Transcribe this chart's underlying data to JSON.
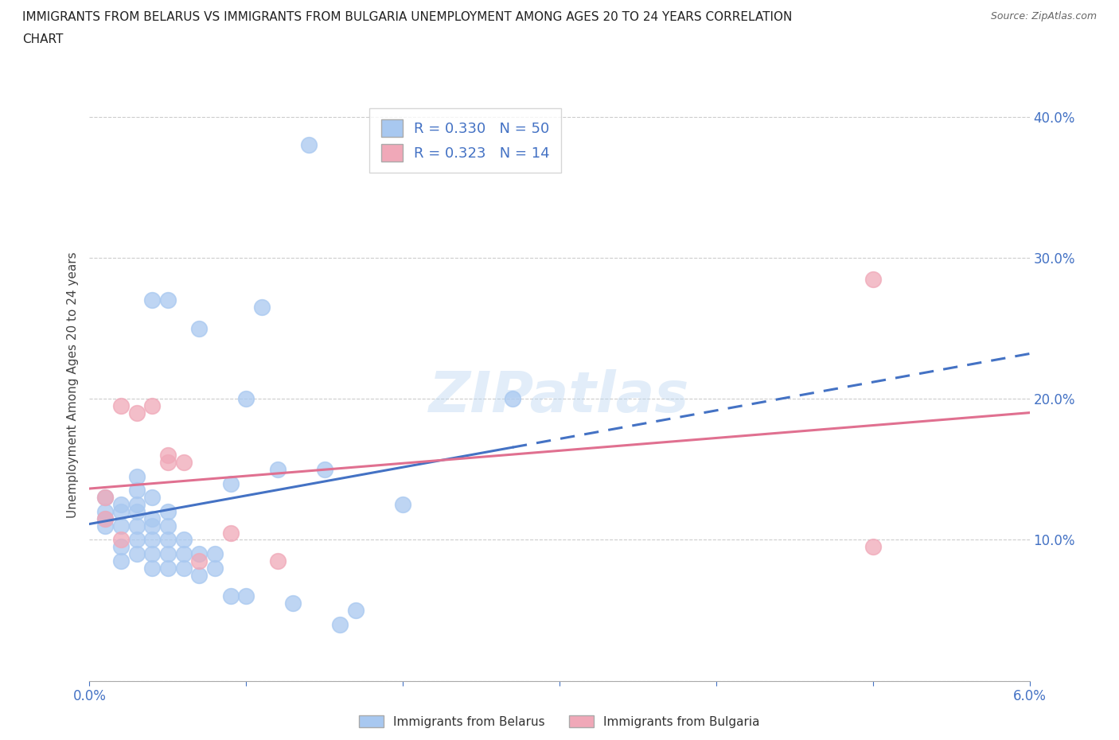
{
  "title_line1": "IMMIGRANTS FROM BELARUS VS IMMIGRANTS FROM BULGARIA UNEMPLOYMENT AMONG AGES 20 TO 24 YEARS CORRELATION",
  "title_line2": "CHART",
  "source": "Source: ZipAtlas.com",
  "ylabel": "Unemployment Among Ages 20 to 24 years",
  "xlim": [
    0.0,
    0.06
  ],
  "ylim": [
    0.0,
    0.42
  ],
  "belarus_color": "#a8c8f0",
  "bulgaria_color": "#f0a8b8",
  "belarus_line_color": "#4472c4",
  "bulgaria_line_color": "#e07090",
  "belarus_R": 0.33,
  "belarus_N": 50,
  "bulgaria_R": 0.323,
  "bulgaria_N": 14,
  "watermark": "ZIPatlas",
  "belarus_x": [
    0.002,
    0.001,
    0.001,
    0.001,
    0.001,
    0.002,
    0.002,
    0.002,
    0.002,
    0.003,
    0.003,
    0.003,
    0.003,
    0.003,
    0.003,
    0.003,
    0.004,
    0.004,
    0.004,
    0.004,
    0.004,
    0.004,
    0.004,
    0.005,
    0.005,
    0.005,
    0.005,
    0.005,
    0.005,
    0.006,
    0.006,
    0.006,
    0.007,
    0.007,
    0.007,
    0.008,
    0.008,
    0.009,
    0.009,
    0.01,
    0.01,
    0.011,
    0.012,
    0.013,
    0.014,
    0.015,
    0.016,
    0.017,
    0.02,
    0.027
  ],
  "belarus_y": [
    0.085,
    0.11,
    0.115,
    0.12,
    0.13,
    0.095,
    0.11,
    0.12,
    0.125,
    0.09,
    0.1,
    0.11,
    0.12,
    0.125,
    0.135,
    0.145,
    0.08,
    0.09,
    0.1,
    0.11,
    0.115,
    0.13,
    0.27,
    0.08,
    0.09,
    0.1,
    0.11,
    0.12,
    0.27,
    0.08,
    0.09,
    0.1,
    0.075,
    0.09,
    0.25,
    0.08,
    0.09,
    0.06,
    0.14,
    0.2,
    0.06,
    0.265,
    0.15,
    0.055,
    0.38,
    0.15,
    0.04,
    0.05,
    0.125,
    0.2
  ],
  "bulgaria_x": [
    0.001,
    0.001,
    0.002,
    0.002,
    0.003,
    0.004,
    0.005,
    0.005,
    0.006,
    0.007,
    0.009,
    0.012,
    0.05,
    0.05
  ],
  "bulgaria_y": [
    0.115,
    0.13,
    0.1,
    0.195,
    0.19,
    0.195,
    0.155,
    0.16,
    0.155,
    0.085,
    0.105,
    0.085,
    0.095,
    0.285
  ]
}
